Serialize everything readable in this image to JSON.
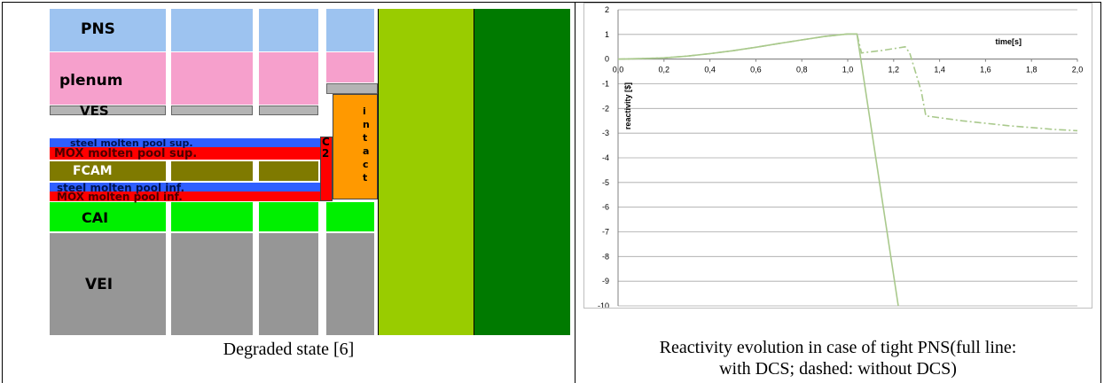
{
  "left_figure": {
    "labels": {
      "pns": "PNS",
      "plenum": "plenum",
      "ves": "VES",
      "steel_sup": "steel molten pool sup.",
      "mox_sup": "MOX molten pool sup.",
      "fcam": "FCAM",
      "steel_inf": "steel molten pool inf.",
      "mox_inf": "MOX molten pool inf.",
      "cai": "CAI",
      "vei": "VEI",
      "c2_1": "C",
      "c2_2": "2",
      "intact": [
        "i",
        "n",
        "t",
        "a",
        "c",
        "t"
      ]
    },
    "colors": {
      "pns": "#9dc3f0",
      "plenum": "#f6a0cc",
      "ves": "#b4b4b4",
      "steel": "#2f5fff",
      "mox": "#ff0000",
      "fcam": "#7f7a00",
      "cai": "#00f000",
      "vei": "#969696",
      "intact": "#ff9900",
      "lightgreen": "#99cc00",
      "darkgreen": "#007a00"
    },
    "caption": "Degraded state [6]"
  },
  "right_figure": {
    "caption_line1": "Reactivity evolution in case of tight PNS(full line:",
    "caption_line2": "with DCS; dashed: without DCS)"
  },
  "chart_data": {
    "type": "line",
    "title": "",
    "xlabel": "time[s]",
    "ylabel": "reactivity [$]",
    "xlim": [
      0,
      2
    ],
    "ylim": [
      -10,
      2
    ],
    "x_ticks": [
      "0,0",
      "0,2",
      "0,4",
      "0,6",
      "0,8",
      "1,0",
      "1,2",
      "1,4",
      "1,6",
      "1,8",
      "2,0"
    ],
    "y_ticks": [
      "2",
      "1",
      "0",
      "-1",
      "-2",
      "-3",
      "-4",
      "-5",
      "-6",
      "-7",
      "-8",
      "-9",
      "-10"
    ],
    "grid": "horizontal",
    "line_color": "#a9c98c",
    "series": [
      {
        "style": "solid",
        "x": [
          0.0,
          0.1,
          0.2,
          0.3,
          0.4,
          0.5,
          0.6,
          0.7,
          0.8,
          0.9,
          1.0,
          1.04,
          1.22
        ],
        "y": [
          0.0,
          0.02,
          0.05,
          0.12,
          0.22,
          0.34,
          0.48,
          0.63,
          0.78,
          0.92,
          1.02,
          1.02,
          -10.0
        ]
      },
      {
        "style": "dashed",
        "x": [
          0.0,
          0.1,
          0.2,
          0.3,
          0.4,
          0.5,
          0.6,
          0.7,
          0.8,
          0.9,
          1.0,
          1.04,
          1.06,
          1.15,
          1.25,
          1.27,
          1.32,
          1.34,
          1.5,
          1.7,
          1.9,
          2.0
        ],
        "y": [
          0.0,
          0.02,
          0.05,
          0.12,
          0.22,
          0.34,
          0.48,
          0.63,
          0.78,
          0.92,
          1.02,
          1.02,
          0.25,
          0.35,
          0.5,
          0.25,
          -1.3,
          -2.3,
          -2.5,
          -2.7,
          -2.85,
          -2.9
        ]
      }
    ]
  }
}
